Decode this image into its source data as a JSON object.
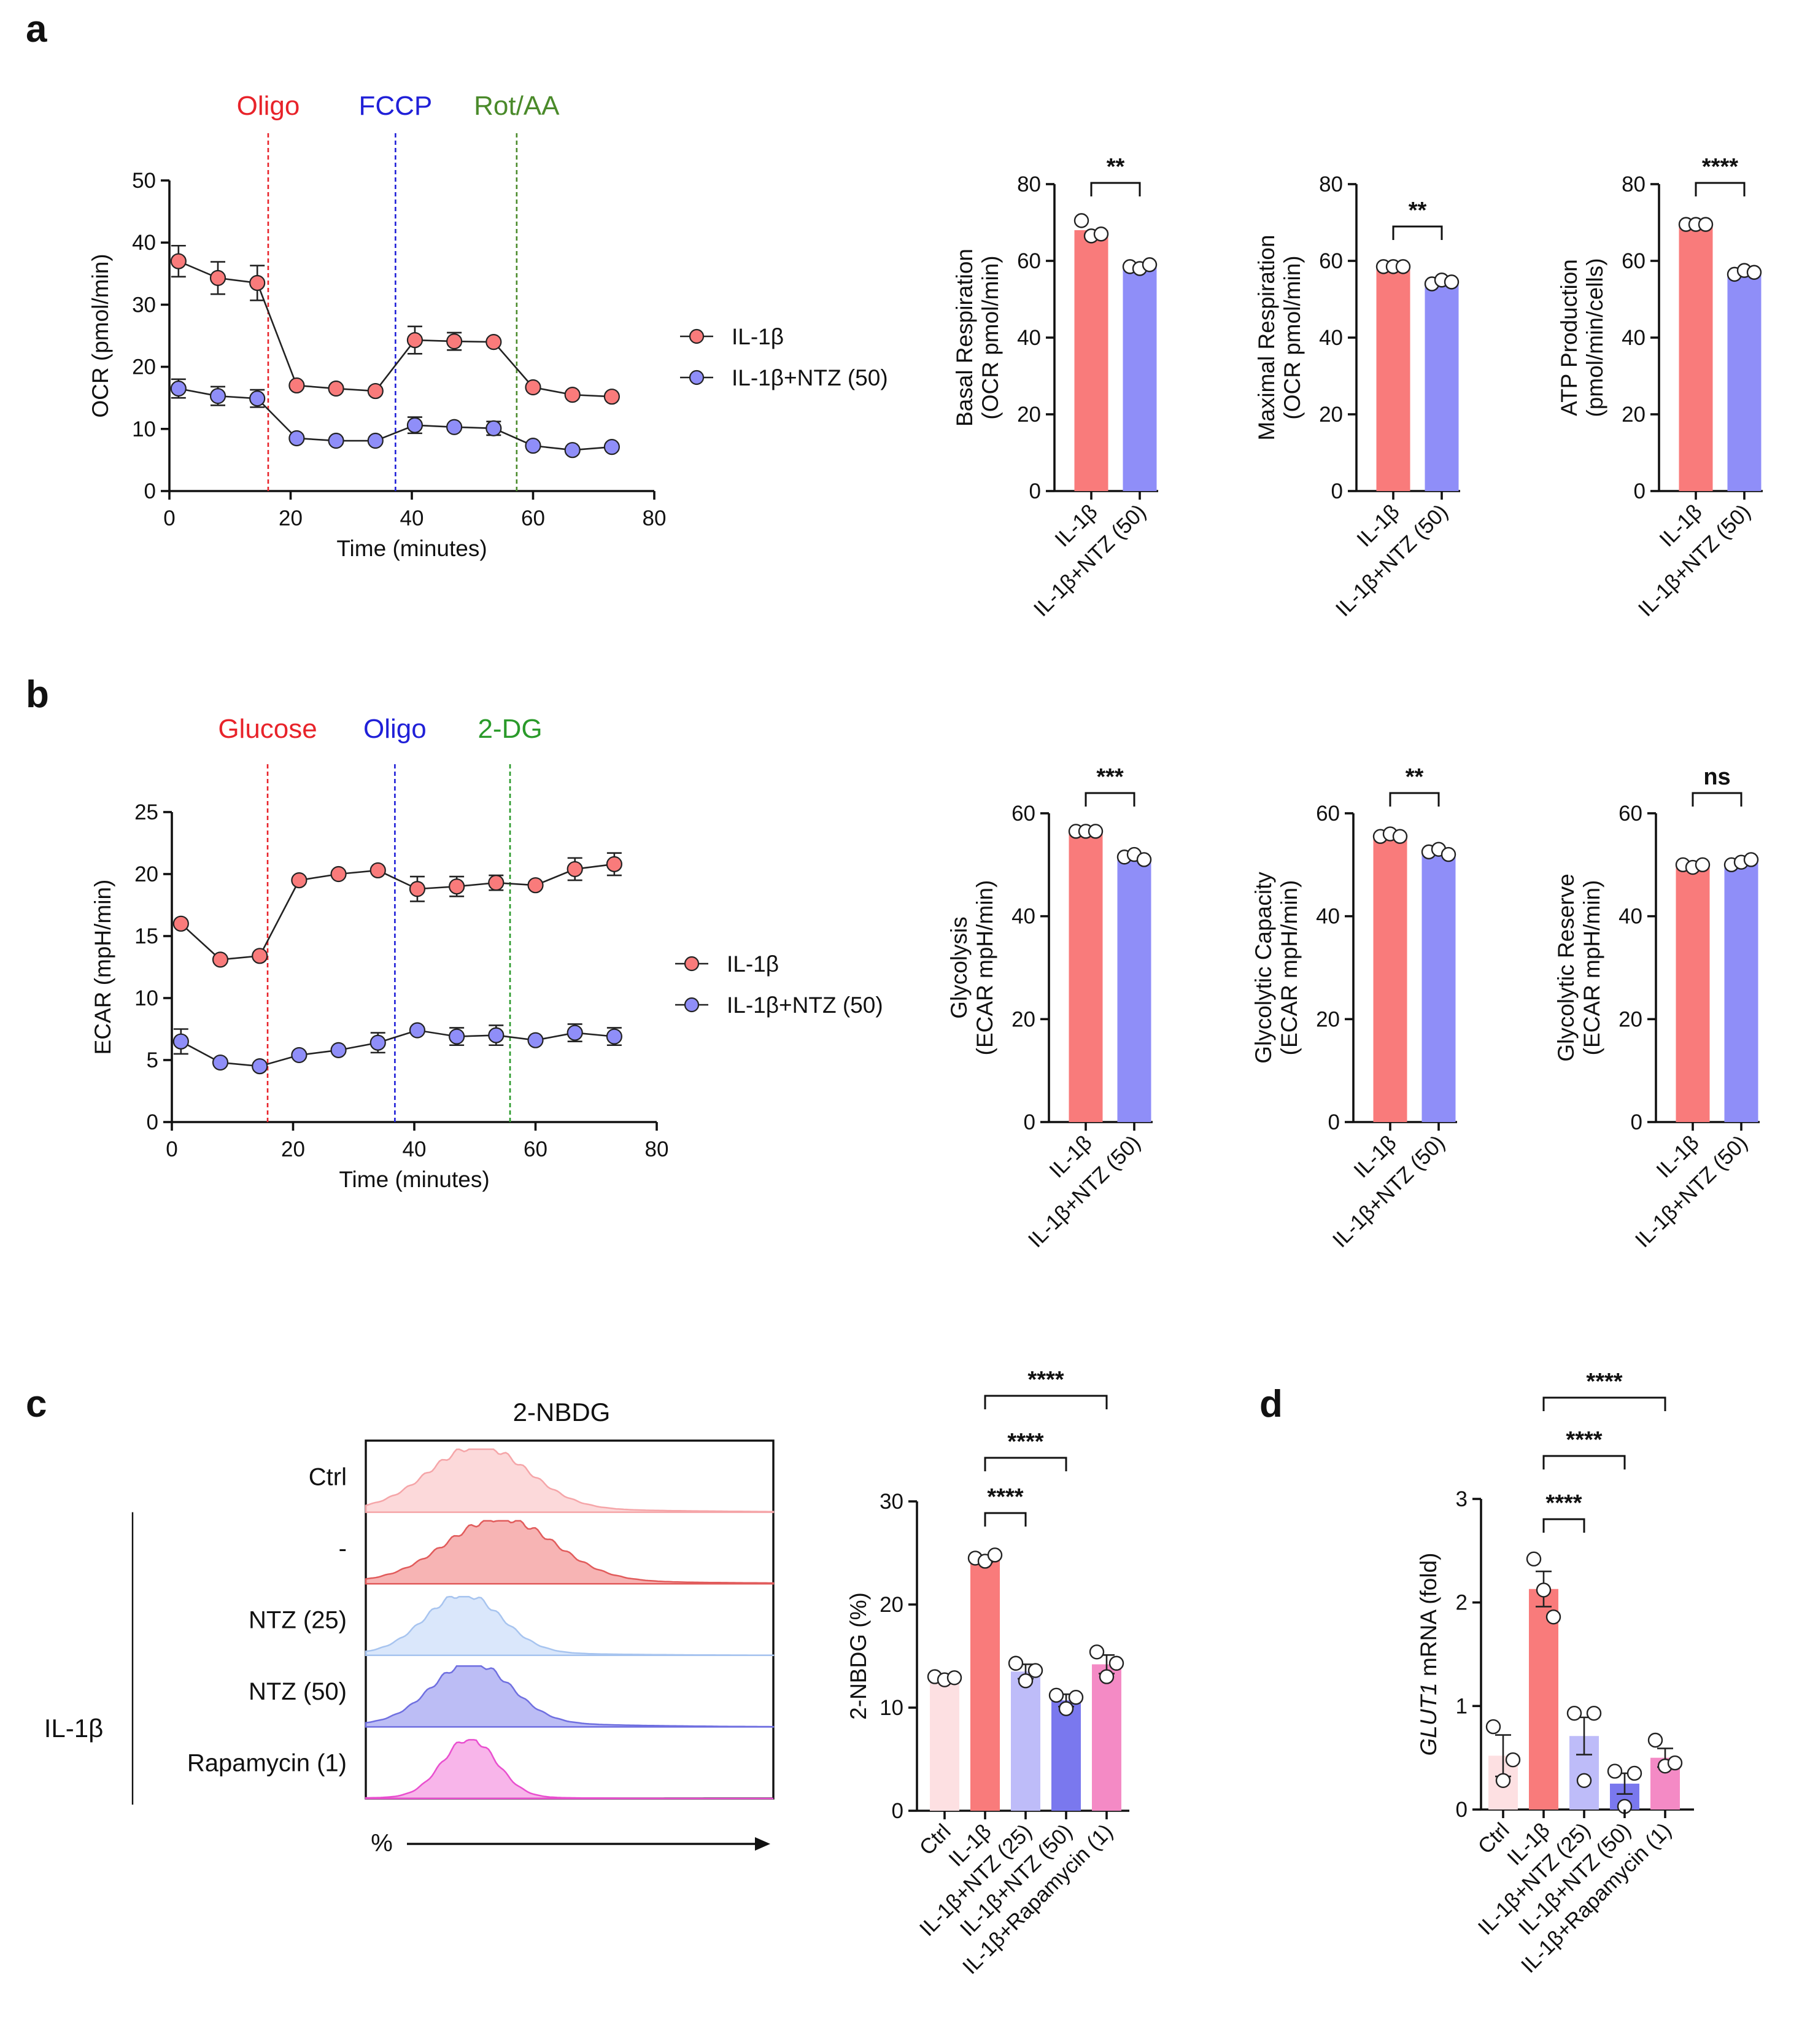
{
  "panel_labels": [
    "a",
    "b",
    "c",
    "d"
  ],
  "colors": {
    "red": "#f97b7b",
    "blue": "#8f8ef8",
    "ctrl": "#fde0e2",
    "nk25": "#bebcf9",
    "nk50": "#7a78ee",
    "rapa": "#f48ac5",
    "oligo_line": "#e8232a",
    "fccp_line": "#2020d8",
    "rot_line": "#4a8a2a",
    "dg_line": "#2a9a2a"
  },
  "legend": {
    "s1": "IL-1β",
    "s2": "IL-1β+NTZ (50)"
  },
  "chart_data": [
    {
      "id": "a-line",
      "type": "line",
      "ylabel": "OCR (pmol/min)",
      "xlabel": "Time (minutes)",
      "xlim": [
        0,
        80
      ],
      "ylim": [
        0,
        50
      ],
      "xticks": [
        0,
        20,
        40,
        60,
        80
      ],
      "yticks": [
        0,
        10,
        20,
        30,
        40,
        50
      ],
      "injections": [
        {
          "label": "Oligo",
          "x": 16.3,
          "color": "#e8232a"
        },
        {
          "label": "FCCP",
          "x": 37.3,
          "color": "#2020d8"
        },
        {
          "label": "Rot/AA",
          "x": 57.3,
          "color": "#4a8a2a"
        }
      ],
      "x": [
        1.5,
        8,
        14.5,
        21,
        27.5,
        34,
        40.5,
        47,
        53.5,
        60,
        66.5,
        73
      ],
      "series": [
        {
          "name": "IL-1β",
          "values": [
            37,
            34.3,
            33.5,
            17,
            16.5,
            16.1,
            24.3,
            24.1,
            24,
            16.7,
            15.5,
            15.2
          ],
          "err": [
            2.5,
            2.6,
            2.8,
            0,
            0,
            0,
            2.2,
            1.4,
            0,
            0,
            0,
            0
          ]
        },
        {
          "name": "IL-1β+NTZ (50)",
          "values": [
            16.5,
            15.3,
            14.9,
            8.5,
            8.1,
            8.1,
            10.6,
            10.3,
            10.1,
            7.3,
            6.6,
            7.1
          ],
          "err": [
            1.5,
            1.5,
            1.4,
            0,
            0,
            0,
            1.3,
            0,
            1.1,
            0,
            0,
            0
          ]
        }
      ]
    },
    {
      "id": "a-bar1",
      "type": "bar",
      "ylabel": [
        "Basal Respiration",
        "(OCR pmol/min)"
      ],
      "categories": [
        "IL-1β",
        "IL-1β+NTZ (50)"
      ],
      "values": [
        68,
        58.5
      ],
      "points": [
        [
          70.5,
          66.5,
          67
        ],
        [
          58.5,
          58,
          59
        ]
      ],
      "ylim": [
        0,
        80
      ],
      "yticks": [
        0,
        20,
        40,
        60,
        80
      ],
      "sig": "**"
    },
    {
      "id": "a-bar2",
      "type": "bar",
      "ylabel": [
        "Maximal Respiration",
        "(OCR pmol/min)"
      ],
      "categories": [
        "IL-1β",
        "IL-1β+NTZ (50)"
      ],
      "values": [
        58.5,
        54.5
      ],
      "points": [
        [
          58.5,
          58.5,
          58.5
        ],
        [
          54,
          55,
          54.5
        ]
      ],
      "ylim": [
        0,
        80
      ],
      "yticks": [
        0,
        20,
        40,
        60,
        80
      ],
      "sig": "**"
    },
    {
      "id": "a-bar3",
      "type": "bar",
      "ylabel": [
        "ATP Production",
        "(pmol/min/cells)"
      ],
      "categories": [
        "IL-1β",
        "IL-1β+NTZ (50)"
      ],
      "values": [
        69.5,
        57
      ],
      "points": [
        [
          69.5,
          69.5,
          69.5
        ],
        [
          56.5,
          57.5,
          57
        ]
      ],
      "ylim": [
        0,
        80
      ],
      "yticks": [
        0,
        20,
        40,
        60,
        80
      ],
      "sig": "****"
    },
    {
      "id": "b-line",
      "type": "line",
      "ylabel": "ECAR (mpH/min)",
      "xlabel": "Time (minutes)",
      "xlim": [
        0,
        80
      ],
      "ylim": [
        0,
        25
      ],
      "xticks": [
        0,
        20,
        40,
        60,
        80
      ],
      "yticks": [
        0,
        5,
        10,
        15,
        20,
        25
      ],
      "injections": [
        {
          "label": "Glucose",
          "x": 15.8,
          "color": "#e8232a"
        },
        {
          "label": "Oligo",
          "x": 36.8,
          "color": "#2020d8"
        },
        {
          "label": "2-DG",
          "x": 55.8,
          "color": "#2a9a2a"
        }
      ],
      "x": [
        1.5,
        8,
        14.5,
        21,
        27.5,
        34,
        40.5,
        47,
        53.5,
        60,
        66.5,
        73
      ],
      "series": [
        {
          "name": "IL-1β",
          "values": [
            16,
            13.1,
            13.4,
            19.5,
            20,
            20.3,
            18.8,
            19,
            19.3,
            19.1,
            20.4,
            20.8
          ],
          "err": [
            0,
            0,
            0,
            0,
            0,
            0,
            1,
            0.8,
            0.6,
            0,
            0.9,
            0.9
          ]
        },
        {
          "name": "IL-1β+NTZ (50)",
          "values": [
            6.5,
            4.8,
            4.5,
            5.4,
            5.8,
            6.4,
            7.4,
            6.9,
            7,
            6.6,
            7.2,
            6.9
          ],
          "err": [
            1,
            0,
            0,
            0,
            0,
            0.8,
            0,
            0.7,
            0.8,
            0,
            0.7,
            0.7
          ]
        }
      ]
    },
    {
      "id": "b-bar1",
      "type": "bar",
      "ylabel": [
        "Glycolysis",
        "(ECAR mpH/min)"
      ],
      "categories": [
        "IL-1β",
        "IL-1β+NTZ (50)"
      ],
      "values": [
        56.5,
        51.5
      ],
      "points": [
        [
          56.5,
          56.5,
          56.5
        ],
        [
          51.5,
          52,
          51
        ]
      ],
      "ylim": [
        0,
        60
      ],
      "yticks": [
        0,
        20,
        40,
        60
      ],
      "sig": "***"
    },
    {
      "id": "b-bar2",
      "type": "bar",
      "ylabel": [
        "Glycolytic Capacity",
        "(ECAR mpH/min)"
      ],
      "categories": [
        "IL-1β",
        "IL-1β+NTZ (50)"
      ],
      "values": [
        55.5,
        52.5
      ],
      "points": [
        [
          55.5,
          56,
          55.5
        ],
        [
          52.5,
          53,
          52
        ]
      ],
      "ylim": [
        0,
        60
      ],
      "yticks": [
        0,
        20,
        40,
        60
      ],
      "sig": "**"
    },
    {
      "id": "b-bar3",
      "type": "bar",
      "ylabel": [
        "Glycolytic Reserve",
        "(ECAR mpH/min)"
      ],
      "categories": [
        "IL-1β",
        "IL-1β+NTZ (50)"
      ],
      "values": [
        49.5,
        50.5
      ],
      "points": [
        [
          50,
          49.5,
          50
        ],
        [
          50,
          50.5,
          51
        ]
      ],
      "ylim": [
        0,
        60
      ],
      "yticks": [
        0,
        20,
        40,
        60
      ],
      "sig": "ns"
    },
    {
      "id": "c-hist",
      "type": "histogram",
      "title": "2-NBDG",
      "rows": [
        "Ctrl",
        "-",
        "NTZ (25)",
        "NTZ (50)",
        "Rapamycin (1)"
      ],
      "group_label": "IL-1β",
      "xlabel": "%"
    },
    {
      "id": "c-bar",
      "type": "bar",
      "ylabel": "2-NBDG (%)",
      "categories": [
        "Ctrl",
        "IL-1β",
        "IL-1β+NTZ (25)",
        "IL-1β+NTZ (50)",
        "IL-1β+Rapamycin (1)"
      ],
      "values": [
        12.9,
        24.3,
        13.5,
        10.7,
        14.2
      ],
      "err": [
        0,
        0.2,
        0.7,
        0.6,
        0.9
      ],
      "points": [
        [
          13,
          12.7,
          12.9
        ],
        [
          24.5,
          24.2,
          24.8
        ],
        [
          14.3,
          12.6,
          13.6
        ],
        [
          11.2,
          9.9,
          11
        ],
        [
          15.4,
          13,
          14.3
        ]
      ],
      "ylim": [
        0,
        30
      ],
      "yticks": [
        0,
        10,
        20,
        30
      ],
      "comparisons": [
        {
          "from": 1,
          "to": 2,
          "label": "****"
        },
        {
          "from": 1,
          "to": 3,
          "label": "****"
        },
        {
          "from": 1,
          "to": 4,
          "label": "****"
        }
      ]
    },
    {
      "id": "d-bar",
      "type": "bar",
      "ylabel_italic": "GLUT1",
      "ylabel": " mRNA (fold)",
      "categories": [
        "Ctrl",
        "IL-1β",
        "IL-1β+NTZ (25)",
        "IL-1β+NTZ (50)",
        "IL-1β+Rapamycin (1)"
      ],
      "values": [
        0.52,
        2.13,
        0.71,
        0.25,
        0.5
      ],
      "err": [
        0.2,
        0.17,
        0.18,
        0.1,
        0.09
      ],
      "points": [
        [
          0.8,
          0.28,
          0.48
        ],
        [
          2.42,
          2.12,
          1.86
        ],
        [
          0.93,
          0.28,
          0.93
        ],
        [
          0.37,
          0.03,
          0.35
        ],
        [
          0.67,
          0.42,
          0.45
        ]
      ],
      "ylim": [
        0,
        3
      ],
      "yticks": [
        0,
        1,
        2,
        3
      ],
      "comparisons": [
        {
          "from": 1,
          "to": 2,
          "label": "****"
        },
        {
          "from": 1,
          "to": 3,
          "label": "****"
        },
        {
          "from": 1,
          "to": 4,
          "label": "****"
        }
      ]
    }
  ]
}
